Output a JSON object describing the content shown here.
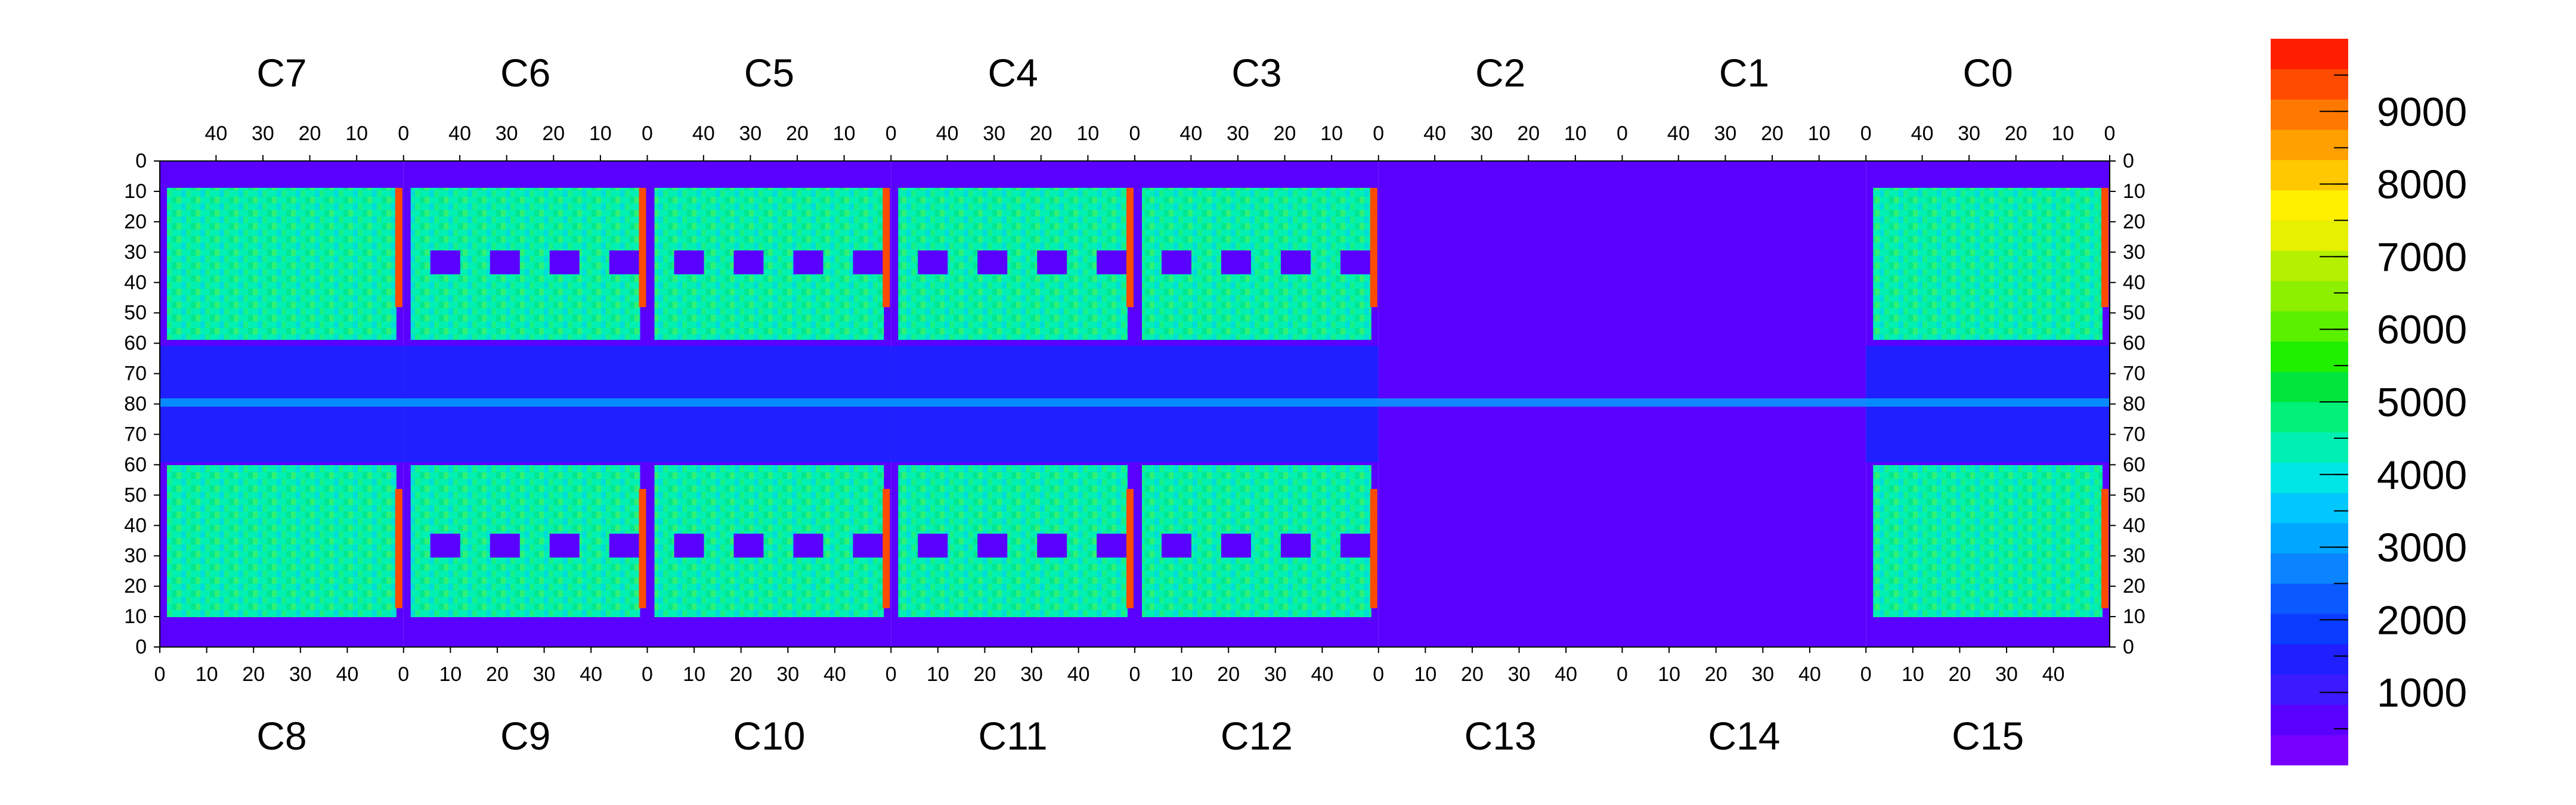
{
  "chart_data": {
    "type": "heatmap",
    "title": "",
    "chip_labels_top": [
      "C7",
      "C6",
      "C5",
      "C4",
      "C3",
      "C2",
      "C1",
      "C0"
    ],
    "chip_labels_bottom": [
      "C8",
      "C9",
      "C10",
      "C11",
      "C12",
      "C13",
      "C14",
      "C15"
    ],
    "x_tick_labels_top_per_chip": [
      "40",
      "30",
      "20",
      "10",
      "0"
    ],
    "x_tick_values_top_per_chip": [
      40,
      30,
      20,
      10,
      0
    ],
    "x_tick_labels_bottom_per_chip": [
      "0",
      "10",
      "20",
      "30",
      "40"
    ],
    "x_tick_values_bottom_per_chip": [
      0,
      10,
      20,
      30,
      40
    ],
    "x_range_per_chip": [
      0,
      52
    ],
    "y_tick_labels": [
      "0",
      "10",
      "20",
      "30",
      "40",
      "50",
      "60",
      "70",
      "80",
      "70",
      "60",
      "50",
      "40",
      "30",
      "20",
      "10",
      "0"
    ],
    "y_range_rows": [
      0,
      160
    ],
    "colorbar": {
      "min": 0,
      "max": 10000,
      "tick_labels": [
        "1000",
        "2000",
        "3000",
        "4000",
        "5000",
        "6000",
        "7000",
        "8000",
        "9000"
      ],
      "tick_values": [
        1000,
        2000,
        3000,
        4000,
        5000,
        6000,
        7000,
        8000,
        9000
      ],
      "colors": [
        "#7700ff",
        "#5a00ff",
        "#3c1aff",
        "#1f1fff",
        "#0a3cff",
        "#0a5aff",
        "#0a84ff",
        "#00a6ff",
        "#00c8ff",
        "#00e6e6",
        "#00f0b4",
        "#00f078",
        "#00e63c",
        "#1ef000",
        "#5af000",
        "#8cf000",
        "#b4f000",
        "#e6f000",
        "#fff000",
        "#ffc800",
        "#ffa000",
        "#ff7800",
        "#ff4b00",
        "#ff1e00"
      ]
    },
    "approx_value_regions": [
      {
        "region": "upper and lower halves of chips C1-C12 (pixel area)",
        "value": 4500
      },
      {
        "region": "central horizontal band of chips C1-C12",
        "value": 1500
      },
      {
        "region": "chips C13 and C14 (central area)",
        "value": 500
      },
      {
        "region": "chip-edge columns",
        "value": 9500
      },
      {
        "region": "square pad blocks",
        "value": 800
      }
    ]
  }
}
